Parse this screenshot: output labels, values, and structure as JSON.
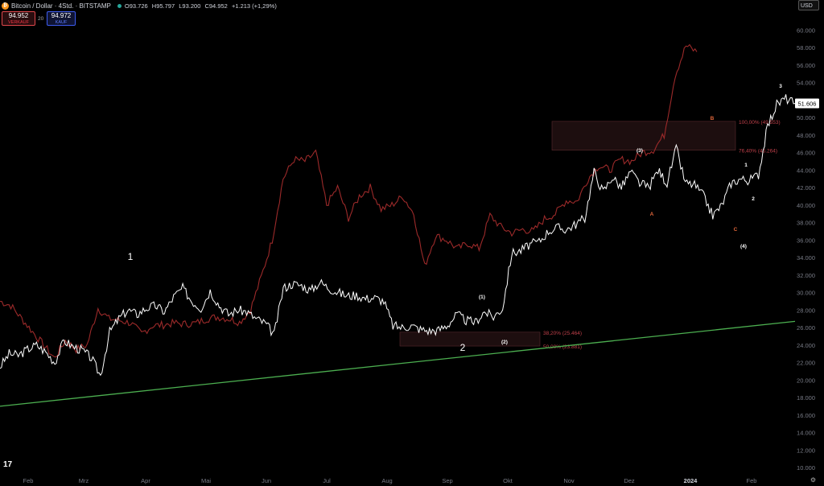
{
  "header": {
    "symbol": "Bitcoin / Dollar · 4Std. · BITSTAMP",
    "logo_letter": "₿",
    "ohlc": {
      "o_label": "O",
      "o": "93.726",
      "h_label": "H",
      "h": "95.797",
      "l_label": "L",
      "l": "93.200",
      "c_label": "C",
      "c": "94.952",
      "change": "+1.213 (+1,29%)"
    }
  },
  "trade": {
    "sell_price": "94.952",
    "sell_label": "VERKAUF",
    "spread": "20",
    "buy_price": "94.972",
    "buy_label": "KAUF"
  },
  "currency": "USD",
  "colors": {
    "price": "#ffffff",
    "overlay": "#9c2a2a",
    "trend": "#4caf50",
    "fib_zone": "#2a1416",
    "fib_text": "#c0404a",
    "axis_text": "#787b86",
    "wave_orange": "#e0663a"
  },
  "chart_data": {
    "type": "line",
    "title": "",
    "xlabel": "",
    "ylabel": "",
    "x_ticks": [
      "Feb",
      "Mrz",
      "Apr",
      "Mai",
      "Jun",
      "Jul",
      "Aug",
      "Sep",
      "Okt",
      "Nov",
      "Dez",
      "2024",
      "Feb"
    ],
    "y_ticks": [
      "10.000",
      "12.000",
      "14.000",
      "16.000",
      "18.000",
      "20.000",
      "22.000",
      "24.000",
      "26.000",
      "28.000",
      "30.000",
      "32.000",
      "34.000",
      "36.000",
      "38.000",
      "40.000",
      "42.000",
      "44.000",
      "46.000",
      "48.000",
      "50.000",
      "52.000",
      "54.000",
      "56.000",
      "58.000",
      "60.000"
    ],
    "ylim": [
      9500,
      61500
    ],
    "last_price_label": "51.606",
    "last_price": 51606,
    "series": [
      {
        "values": [
          21500,
          23000,
          22800,
          23500,
          24000,
          23200,
          22000,
          24500,
          23800,
          23400,
          22500,
          20500,
          25500,
          27000,
          28000,
          27500,
          28200,
          28500,
          27800,
          29500,
          30500,
          29000,
          28200,
          30200,
          28500,
          27500,
          28000,
          27800,
          27000,
          26500,
          25200,
          30500,
          31000,
          30800,
          30200,
          31200,
          30500,
          30000,
          29600,
          29700,
          29300,
          29400,
          29000,
          26200,
          26000,
          26200,
          25800,
          25600,
          25700,
          26300,
          27500,
          26800,
          26600,
          27800,
          27200,
          28200,
          34500,
          34800,
          35500,
          35800,
          37000,
          37400,
          37200,
          37800,
          38500,
          43800,
          41500,
          43200,
          42000,
          43800,
          42500,
          42000,
          44000,
          42500,
          46500,
          42500,
          42300,
          41000,
          38800,
          40000,
          42500,
          43000,
          42800,
          43500,
          49000,
          51500,
          52200,
          51600
        ]
      },
      {
        "values": [
          29000,
          28500,
          27000,
          25500,
          24000,
          22500,
          24500,
          23500,
          24000,
          28200,
          27000,
          26800,
          26500,
          25300,
          26200,
          26300,
          26500,
          26400,
          26500,
          27000,
          27200,
          27000,
          26600,
          28000,
          31800,
          36000,
          43000,
          45200,
          45000,
          46000,
          40000,
          42000,
          38500,
          41000,
          42000,
          39500,
          40000,
          41000,
          39000,
          33000,
          36500,
          36000,
          35000,
          35600,
          35000,
          38800,
          37500,
          36800,
          37200,
          37000,
          38400,
          39000,
          40500,
          40400,
          43000,
          44500,
          44000,
          45200,
          45000,
          46000,
          46300,
          48000,
          54800,
          58200,
          57500
        ]
      }
    ],
    "trend_line": {
      "start": 17000,
      "end": 26700
    },
    "fib_levels": [
      {
        "label": "100,00% (49.553)",
        "value": 49553
      },
      {
        "label": "76,40% (46.264)",
        "value": 46264
      },
      {
        "label": "38,20% (25.464)",
        "value": 25464
      },
      {
        "label": "50,00% (23.881)",
        "value": 23881
      }
    ],
    "annotations": [
      {
        "text": "1",
        "kind": "major"
      },
      {
        "text": "2",
        "kind": "major"
      },
      {
        "text": "(1)",
        "kind": "minor"
      },
      {
        "text": "(2)",
        "kind": "minor"
      },
      {
        "text": "(3)",
        "kind": "minor"
      },
      {
        "text": "(4)",
        "kind": "minor"
      },
      {
        "text": "A",
        "kind": "orange"
      },
      {
        "text": "B",
        "kind": "orange"
      },
      {
        "text": "C",
        "kind": "orange"
      },
      {
        "text": "1",
        "kind": "minor"
      },
      {
        "text": "2",
        "kind": "minor"
      },
      {
        "text": "3",
        "kind": "minor"
      }
    ]
  }
}
